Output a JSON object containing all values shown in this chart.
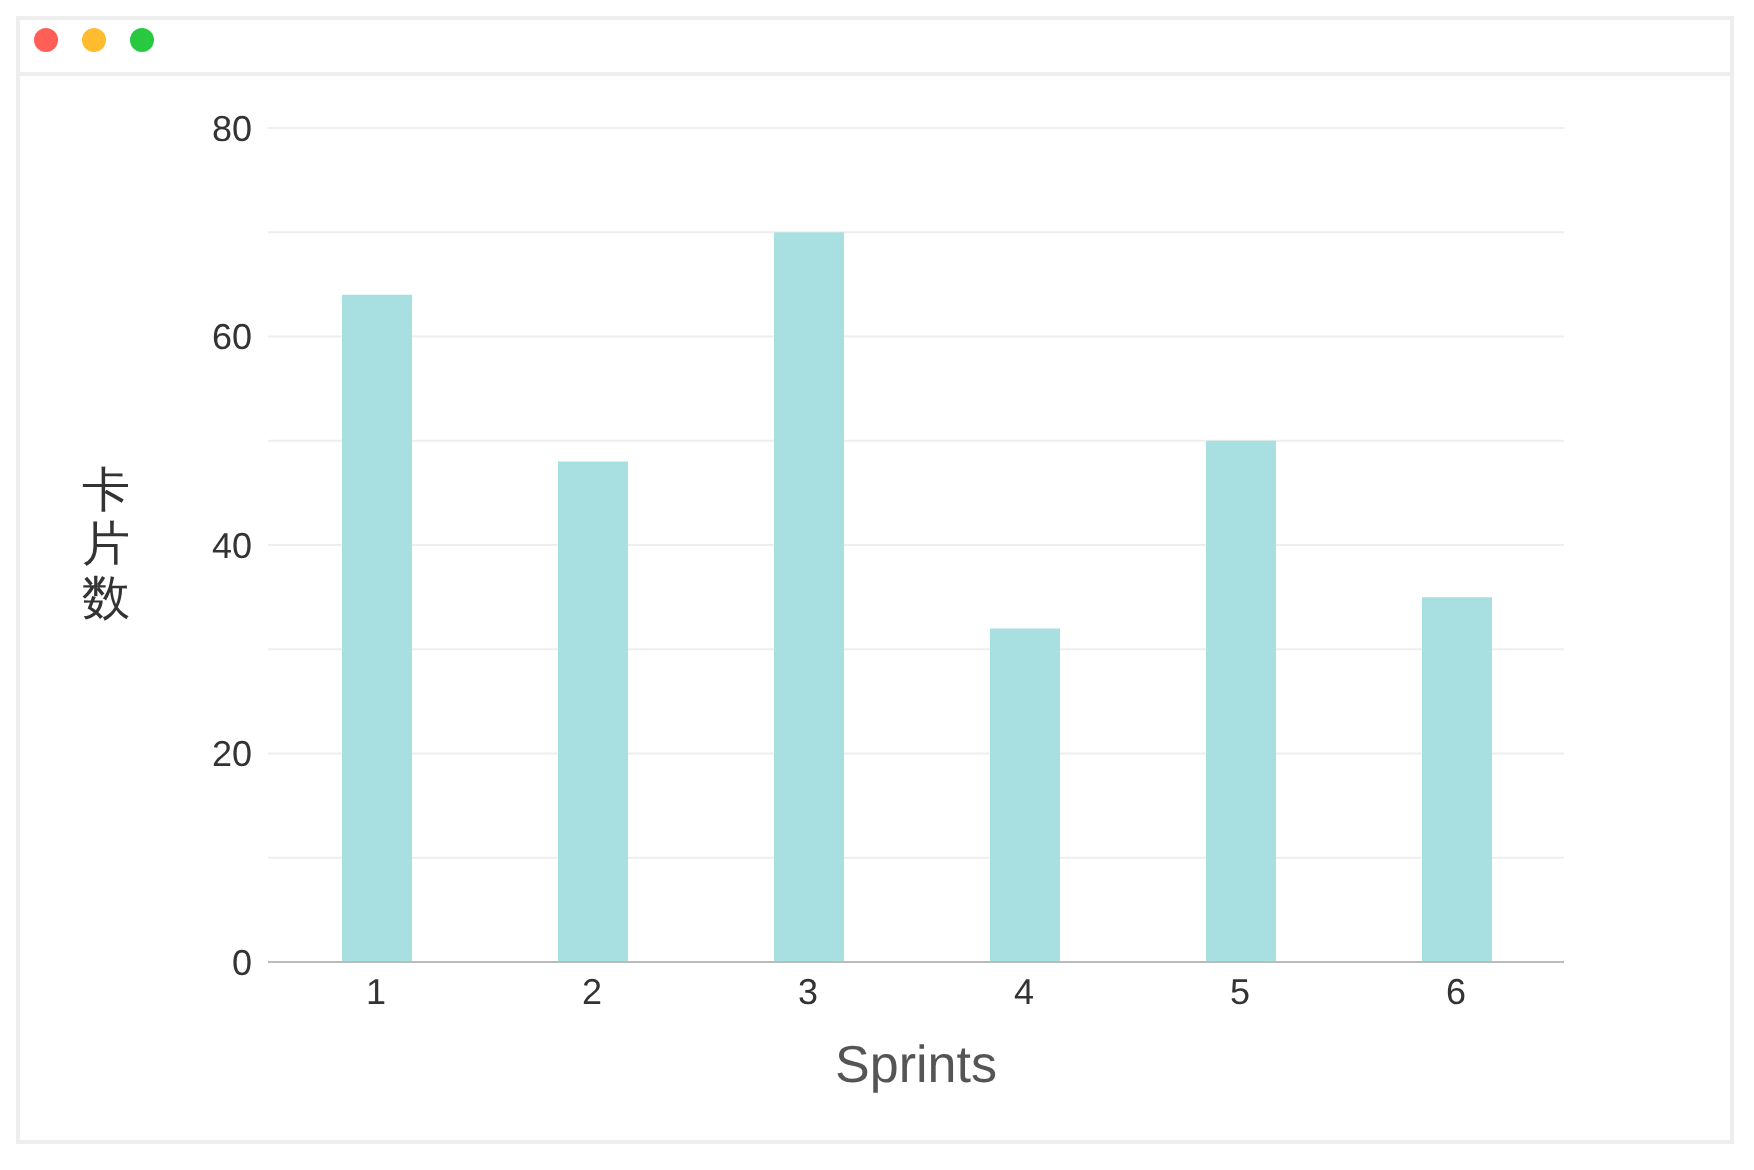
{
  "chart_data": {
    "type": "bar",
    "xlabel": "Sprints",
    "ylabel": "卡片数",
    "categories": [
      "1",
      "2",
      "3",
      "4",
      "5",
      "6"
    ],
    "values": [
      64,
      48,
      70,
      32,
      50,
      35
    ],
    "color": "#a8dfe0",
    "ylim": [
      0,
      80
    ],
    "yticks": [
      0,
      {
        "value": 10,
        "label": null
      },
      20,
      {
        "value": 30,
        "label": null
      },
      40,
      {
        "value": 50,
        "label": null
      },
      60,
      {
        "value": 70,
        "label": null
      },
      80
    ],
    "grid": "y"
  }
}
